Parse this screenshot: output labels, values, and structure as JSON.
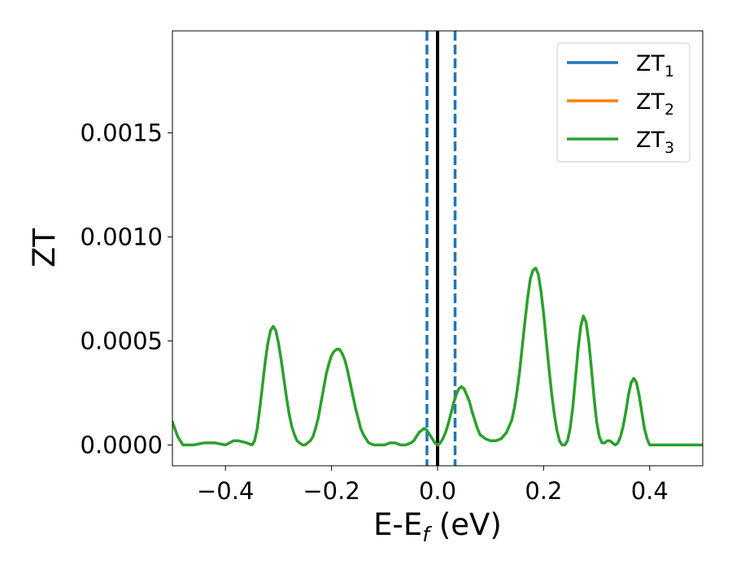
{
  "chart_data": {
    "type": "line",
    "xlabel": {
      "main": "E-E",
      "sub": "f",
      "rest": " (eV)"
    },
    "ylabel": "ZT",
    "xlim": [
      -0.5,
      0.5
    ],
    "ylim": [
      -0.0001,
      0.00199
    ],
    "xticks": [
      -0.4,
      -0.2,
      0.0,
      0.2,
      0.4
    ],
    "xtick_labels": [
      "−0.4",
      "−0.2",
      "0.0",
      "0.2",
      "0.4"
    ],
    "yticks": [
      0.0,
      0.0005,
      0.001,
      0.0015
    ],
    "ytick_labels": [
      "0.0000",
      "0.0005",
      "0.0010",
      "0.0015"
    ],
    "grid": false,
    "legend": {
      "placement": "top-right"
    },
    "series": [
      {
        "name": "ZT",
        "sub": "1",
        "color": "#1f77b4"
      },
      {
        "name": "ZT",
        "sub": "2",
        "color": "#ff7f0e"
      },
      {
        "name": "ZT",
        "sub": "3",
        "color": "#2ca02c",
        "points": [
          [
            -0.5,
            0.00011
          ],
          [
            -0.49,
            4e-05
          ],
          [
            -0.48,
            0.0
          ],
          [
            -0.46,
            0.0
          ],
          [
            -0.44,
            1e-05
          ],
          [
            -0.42,
            1e-05
          ],
          [
            -0.4,
            0.0
          ],
          [
            -0.385,
            2e-05
          ],
          [
            -0.375,
            2e-05
          ],
          [
            -0.36,
            1e-05
          ],
          [
            -0.35,
            0.0
          ],
          [
            -0.345,
            2e-05
          ],
          [
            -0.34,
            8e-05
          ],
          [
            -0.335,
            0.00018
          ],
          [
            -0.33,
            0.00029
          ],
          [
            -0.325,
            0.0004
          ],
          [
            -0.32,
            0.00049
          ],
          [
            -0.315,
            0.00055
          ],
          [
            -0.31,
            0.00057
          ],
          [
            -0.305,
            0.00055
          ],
          [
            -0.3,
            0.00049
          ],
          [
            -0.295,
            0.00041
          ],
          [
            -0.29,
            0.00032
          ],
          [
            -0.285,
            0.00023
          ],
          [
            -0.28,
            0.00015
          ],
          [
            -0.275,
            9e-05
          ],
          [
            -0.27,
            5e-05
          ],
          [
            -0.265,
            2e-05
          ],
          [
            -0.26,
            1e-05
          ],
          [
            -0.255,
            0.0
          ],
          [
            -0.25,
            0.0
          ],
          [
            -0.245,
            1e-05
          ],
          [
            -0.24,
            2e-05
          ],
          [
            -0.235,
            4e-05
          ],
          [
            -0.23,
            8e-05
          ],
          [
            -0.225,
            0.00013
          ],
          [
            -0.22,
            0.0002
          ],
          [
            -0.215,
            0.00027
          ],
          [
            -0.21,
            0.00034
          ],
          [
            -0.205,
            0.00039
          ],
          [
            -0.2,
            0.00043
          ],
          [
            -0.195,
            0.00045
          ],
          [
            -0.19,
            0.00046
          ],
          [
            -0.185,
            0.00046
          ],
          [
            -0.18,
            0.00044
          ],
          [
            -0.175,
            0.00041
          ],
          [
            -0.17,
            0.00036
          ],
          [
            -0.165,
            0.0003
          ],
          [
            -0.16,
            0.00024
          ],
          [
            -0.155,
            0.00018
          ],
          [
            -0.15,
            0.00013
          ],
          [
            -0.145,
            8e-05
          ],
          [
            -0.14,
            5e-05
          ],
          [
            -0.135,
            3e-05
          ],
          [
            -0.13,
            1e-05
          ],
          [
            -0.12,
            0.0
          ],
          [
            -0.11,
            0.0
          ],
          [
            -0.1,
            0.0
          ],
          [
            -0.09,
            1e-05
          ],
          [
            -0.08,
            1e-05
          ],
          [
            -0.07,
            0.0
          ],
          [
            -0.06,
            0.0
          ],
          [
            -0.05,
            1e-05
          ],
          [
            -0.045,
            2e-05
          ],
          [
            -0.04,
            4e-05
          ],
          [
            -0.035,
            6e-05
          ],
          [
            -0.03,
            7e-05
          ],
          [
            -0.025,
            8e-05
          ],
          [
            -0.02,
            7e-05
          ],
          [
            -0.015,
            5e-05
          ],
          [
            -0.01,
            3e-05
          ],
          [
            -0.005,
            1e-05
          ],
          [
            0.0,
            0.0
          ],
          [
            0.005,
            1e-05
          ],
          [
            0.01,
            3e-05
          ],
          [
            0.015,
            6e-05
          ],
          [
            0.02,
            0.0001
          ],
          [
            0.025,
            0.00015
          ],
          [
            0.03,
            0.0002
          ],
          [
            0.035,
            0.00024
          ],
          [
            0.04,
            0.00027
          ],
          [
            0.045,
            0.00028
          ],
          [
            0.05,
            0.00027
          ],
          [
            0.055,
            0.00024
          ],
          [
            0.06,
            0.00021
          ],
          [
            0.065,
            0.00016
          ],
          [
            0.07,
            0.00012
          ],
          [
            0.075,
            8e-05
          ],
          [
            0.08,
            5e-05
          ],
          [
            0.09,
            3e-05
          ],
          [
            0.1,
            2e-05
          ],
          [
            0.11,
            2e-05
          ],
          [
            0.12,
            3e-05
          ],
          [
            0.13,
            6e-05
          ],
          [
            0.14,
            0.00012
          ],
          [
            0.145,
            0.00018
          ],
          [
            0.15,
            0.00026
          ],
          [
            0.155,
            0.00036
          ],
          [
            0.16,
            0.00048
          ],
          [
            0.165,
            0.0006
          ],
          [
            0.17,
            0.00071
          ],
          [
            0.175,
            0.0008
          ],
          [
            0.18,
            0.00084
          ],
          [
            0.185,
            0.00085
          ],
          [
            0.19,
            0.00082
          ],
          [
            0.195,
            0.00074
          ],
          [
            0.2,
            0.00063
          ],
          [
            0.205,
            0.0005
          ],
          [
            0.21,
            0.00037
          ],
          [
            0.215,
            0.00025
          ],
          [
            0.22,
            0.00015
          ],
          [
            0.225,
            7e-05
          ],
          [
            0.23,
            2e-05
          ],
          [
            0.235,
            0.0
          ],
          [
            0.24,
            0.0
          ],
          [
            0.245,
            2e-05
          ],
          [
            0.25,
            8e-05
          ],
          [
            0.255,
            0.00018
          ],
          [
            0.26,
            0.00032
          ],
          [
            0.265,
            0.00046
          ],
          [
            0.27,
            0.00057
          ],
          [
            0.275,
            0.00062
          ],
          [
            0.28,
            0.00059
          ],
          [
            0.285,
            0.0005
          ],
          [
            0.29,
            0.00037
          ],
          [
            0.295,
            0.00023
          ],
          [
            0.3,
            0.00011
          ],
          [
            0.305,
            4e-05
          ],
          [
            0.31,
            1e-05
          ],
          [
            0.315,
            1e-05
          ],
          [
            0.32,
            2e-05
          ],
          [
            0.325,
            2e-05
          ],
          [
            0.33,
            1e-05
          ],
          [
            0.335,
            0.0
          ],
          [
            0.34,
            1e-05
          ],
          [
            0.345,
            4e-05
          ],
          [
            0.35,
            9e-05
          ],
          [
            0.355,
            0.00016
          ],
          [
            0.36,
            0.00024
          ],
          [
            0.365,
            0.0003
          ],
          [
            0.37,
            0.00032
          ],
          [
            0.375,
            0.0003
          ],
          [
            0.38,
            0.00024
          ],
          [
            0.385,
            0.00016
          ],
          [
            0.39,
            8e-05
          ],
          [
            0.395,
            3e-05
          ],
          [
            0.4,
            0.0
          ],
          [
            0.42,
            0.0
          ],
          [
            0.44,
            0.0
          ],
          [
            0.46,
            0.0
          ],
          [
            0.48,
            0.0
          ],
          [
            0.5,
            0.0
          ]
        ]
      }
    ],
    "vlines": [
      {
        "x": -0.02,
        "style": "dashed",
        "color": "#1f77b4"
      },
      {
        "x": 0.0,
        "style": "solid",
        "color": "#000000"
      },
      {
        "x": 0.033,
        "style": "dashed",
        "color": "#1f77b4"
      }
    ]
  }
}
